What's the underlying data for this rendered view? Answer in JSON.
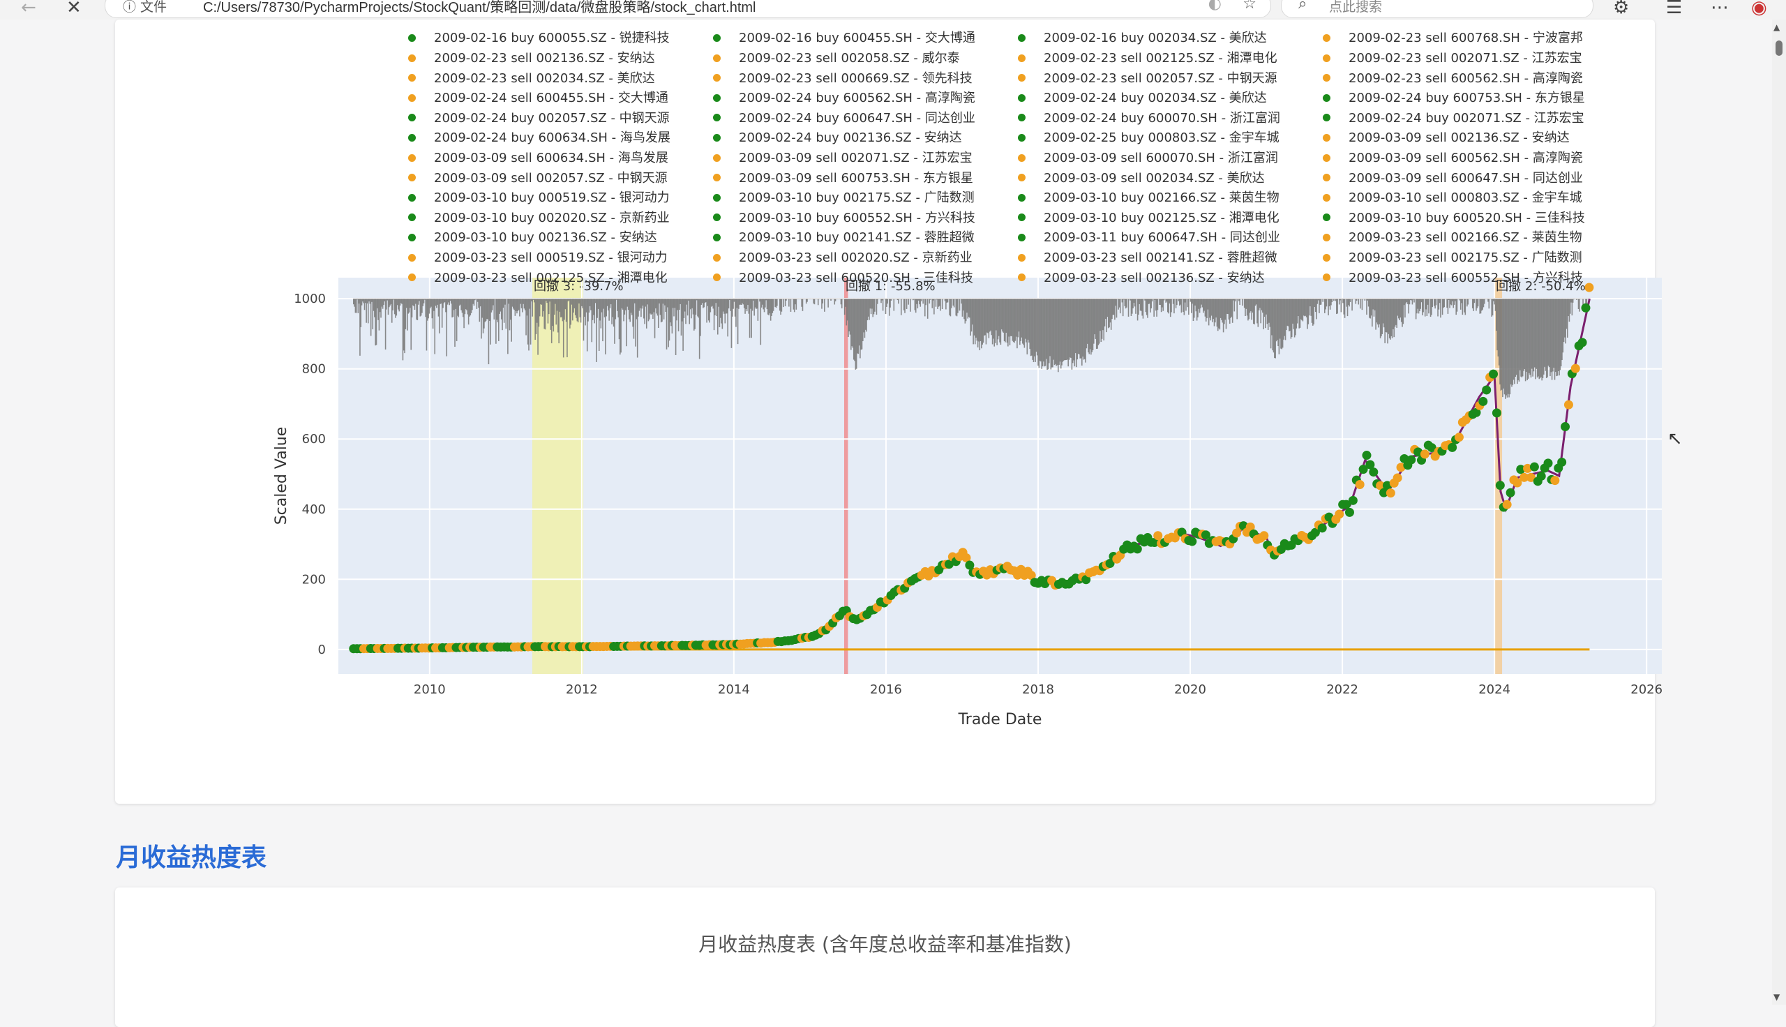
{
  "browser": {
    "info_label": "文件",
    "url": "C:/Users/78730/PycharmProjects/StockQuant/策略回测/data/微盘股策略/stock_chart.html",
    "search_placeholder": "点此搜索"
  },
  "colors": {
    "buy": "#1a8a1a",
    "sell": "#f0a020",
    "equity_line": "#7b1f6e",
    "benchmark": "#e8a000",
    "plot_bg": "#e5ecf6",
    "title_blue": "#2a6bd6"
  },
  "legend": {
    "partial_top": [
      "2009-02-16 buy 600055.SZ - 锐捷科技",
      "2009-02-16 buy 600455.SH - 交大博通",
      "2009-02-16 buy 002034.SZ - 美欣达",
      "2009-02-23 sell 600768.SH - 宁波富邦"
    ],
    "items": [
      {
        "text": "2009-02-23 sell 002136.SZ - 安纳达",
        "type": "sell"
      },
      {
        "text": "2009-02-23 sell 002058.SZ - 威尔泰",
        "type": "sell"
      },
      {
        "text": "2009-02-23 sell 002125.SZ - 湘潭电化",
        "type": "sell"
      },
      {
        "text": "2009-02-23 sell 002071.SZ - 江苏宏宝",
        "type": "sell"
      },
      {
        "text": "2009-02-23 sell 002034.SZ - 美欣达",
        "type": "sell"
      },
      {
        "text": "2009-02-23 sell 000669.SZ - 领先科技",
        "type": "sell"
      },
      {
        "text": "2009-02-23 sell 002057.SZ - 中钢天源",
        "type": "sell"
      },
      {
        "text": "2009-02-23 sell 600562.SH - 高淳陶瓷",
        "type": "sell"
      },
      {
        "text": "2009-02-24 sell 600455.SH - 交大博通",
        "type": "sell"
      },
      {
        "text": "2009-02-24 buy 600562.SH - 高淳陶瓷",
        "type": "buy"
      },
      {
        "text": "2009-02-24 buy 002034.SZ - 美欣达",
        "type": "buy"
      },
      {
        "text": "2009-02-24 buy 600753.SH - 东方银星",
        "type": "buy"
      },
      {
        "text": "2009-02-24 buy 002057.SZ - 中钢天源",
        "type": "buy"
      },
      {
        "text": "2009-02-24 buy 600647.SH - 同达创业",
        "type": "buy"
      },
      {
        "text": "2009-02-24 buy 600070.SH - 浙江富润",
        "type": "buy"
      },
      {
        "text": "2009-02-24 buy 002071.SZ - 江苏宏宝",
        "type": "buy"
      },
      {
        "text": "2009-02-24 buy 600634.SH - 海鸟发展",
        "type": "buy"
      },
      {
        "text": "2009-02-24 buy 002136.SZ - 安纳达",
        "type": "buy"
      },
      {
        "text": "2009-02-25 buy 000803.SZ - 金宇车城",
        "type": "buy"
      },
      {
        "text": "2009-03-09 sell 002136.SZ - 安纳达",
        "type": "sell"
      },
      {
        "text": "2009-03-09 sell 600634.SH - 海鸟发展",
        "type": "sell"
      },
      {
        "text": "2009-03-09 sell 002071.SZ - 江苏宏宝",
        "type": "sell"
      },
      {
        "text": "2009-03-09 sell 600070.SH - 浙江富润",
        "type": "sell"
      },
      {
        "text": "2009-03-09 sell 600562.SH - 高淳陶瓷",
        "type": "sell"
      },
      {
        "text": "2009-03-09 sell 002057.SZ - 中钢天源",
        "type": "sell"
      },
      {
        "text": "2009-03-09 sell 600753.SH - 东方银星",
        "type": "sell"
      },
      {
        "text": "2009-03-09 sell 002034.SZ - 美欣达",
        "type": "sell"
      },
      {
        "text": "2009-03-09 sell 600647.SH - 同达创业",
        "type": "sell"
      },
      {
        "text": "2009-03-10 buy 000519.SZ - 银河动力",
        "type": "buy"
      },
      {
        "text": "2009-03-10 buy 002175.SZ - 广陆数测",
        "type": "buy"
      },
      {
        "text": "2009-03-10 buy 002166.SZ - 莱茵生物",
        "type": "buy"
      },
      {
        "text": "2009-03-10 sell 000803.SZ - 金宇车城",
        "type": "sell"
      },
      {
        "text": "2009-03-10 buy 002020.SZ - 京新药业",
        "type": "buy"
      },
      {
        "text": "2009-03-10 buy 600552.SH - 方兴科技",
        "type": "buy"
      },
      {
        "text": "2009-03-10 buy 002125.SZ - 湘潭电化",
        "type": "buy"
      },
      {
        "text": "2009-03-10 buy 600520.SH - 三佳科技",
        "type": "buy"
      },
      {
        "text": "2009-03-10 buy 002136.SZ - 安纳达",
        "type": "buy"
      },
      {
        "text": "2009-03-10 buy 002141.SZ - 蓉胜超微",
        "type": "buy"
      },
      {
        "text": "2009-03-11 buy 600647.SH - 同达创业",
        "type": "buy"
      },
      {
        "text": "2009-03-23 sell 002166.SZ - 莱茵生物",
        "type": "sell"
      },
      {
        "text": "2009-03-23 sell 000519.SZ - 银河动力",
        "type": "sell"
      },
      {
        "text": "2009-03-23 sell 002020.SZ - 京新药业",
        "type": "sell"
      },
      {
        "text": "2009-03-23 sell 002141.SZ - 蓉胜超微",
        "type": "sell"
      },
      {
        "text": "2009-03-23 sell 002175.SZ - 广陆数测",
        "type": "sell"
      },
      {
        "text": "2009-03-23 sell 002125.SZ - 湘潭电化",
        "type": "sell"
      },
      {
        "text": "2009-03-23 sell 600520.SH - 三佳科技",
        "type": "sell"
      },
      {
        "text": "2009-03-23 sell 002136.SZ - 安纳达",
        "type": "sell"
      },
      {
        "text": "2009-03-23 sell 600552.SH - 方兴科技",
        "type": "sell"
      }
    ]
  },
  "chart_data": {
    "type": "line",
    "xlabel": "Trade Date",
    "ylabel": "Scaled Value",
    "xlim": [
      2008.8,
      2026.2
    ],
    "ylim": [
      -70,
      1060
    ],
    "xticks": [
      2010,
      2012,
      2014,
      2016,
      2018,
      2020,
      2022,
      2024,
      2026
    ],
    "yticks": [
      0,
      200,
      400,
      600,
      800,
      1000
    ],
    "grid": true,
    "drawdown_zones": [
      {
        "label": "回撤 3: -39.7%",
        "start": 2011.35,
        "end": 2012.02,
        "color": "#f2f2a0"
      },
      {
        "label": "回撤 1: -55.8%",
        "start": 2015.45,
        "end": 2015.5,
        "color": "#f08080"
      },
      {
        "label": "回撤 2: -50.4%",
        "start": 2024.0,
        "end": 2024.1,
        "color": "#f5c88a"
      }
    ],
    "equity": {
      "x": [
        2009.0,
        2009.5,
        2010.0,
        2010.5,
        2011.0,
        2011.5,
        2012.0,
        2012.5,
        2013.0,
        2013.5,
        2014.0,
        2014.5,
        2014.8,
        2015.0,
        2015.2,
        2015.35,
        2015.45,
        2015.6,
        2015.8,
        2016.0,
        2016.2,
        2016.5,
        2016.8,
        2017.0,
        2017.2,
        2017.5,
        2017.8,
        2018.0,
        2018.3,
        2018.6,
        2018.9,
        2019.1,
        2019.3,
        2019.6,
        2019.9,
        2020.1,
        2020.4,
        2020.7,
        2021.0,
        2021.1,
        2021.3,
        2021.6,
        2021.9,
        2022.1,
        2022.3,
        2022.6,
        2022.9,
        2023.2,
        2023.5,
        2023.8,
        2024.0,
        2024.08,
        2024.15,
        2024.3,
        2024.5,
        2024.7,
        2024.85,
        2025.0,
        2025.1,
        2025.25
      ],
      "y": [
        2,
        3,
        4,
        6,
        7,
        8,
        8,
        9,
        10,
        12,
        14,
        20,
        28,
        35,
        55,
        90,
        115,
        80,
        110,
        140,
        175,
        210,
        250,
        270,
        215,
        230,
        220,
        195,
        185,
        200,
        240,
        280,
        300,
        310,
        330,
        320,
        295,
        345,
        320,
        265,
        300,
        330,
        380,
        410,
        540,
        450,
        550,
        560,
        600,
        720,
        780,
        450,
        400,
        490,
        500,
        510,
        495,
        750,
        850,
        1000
      ]
    },
    "benchmark": {
      "x": [
        2009.0,
        2025.25
      ],
      "y": [
        0,
        0
      ]
    }
  },
  "section": {
    "title": "月收益热度表"
  },
  "heatmap": {
    "title": "月收益热度表 (含年度总收益率和基准指数)"
  }
}
